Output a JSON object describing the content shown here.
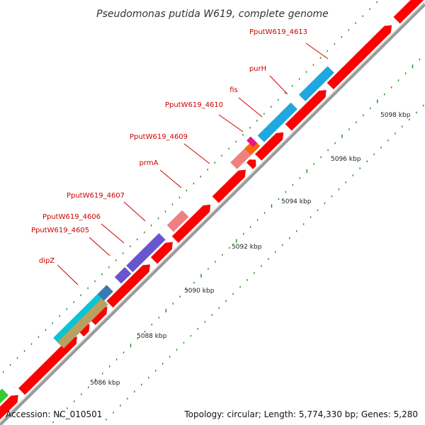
{
  "title": "Pseudomonas putida W619, complete genome",
  "accession_label": "Accession: NC_010501",
  "summary_label": "Topology: circular; Length: 5,774,330 bp; Genes: 5,280",
  "colors": {
    "cds": "#ff0000",
    "backbone": "#9a9a9a",
    "label": "#cc0000",
    "tick": "#1f8a1f"
  },
  "gene_labels": [
    {
      "name": "PputW619_4613"
    },
    {
      "name": "purH"
    },
    {
      "name": "fis"
    },
    {
      "name": "PputW619_4610"
    },
    {
      "name": "PputW619_4609"
    },
    {
      "name": "prmA"
    },
    {
      "name": "PputW619_4607"
    },
    {
      "name": "PputW619_4606"
    },
    {
      "name": "PputW619_4605"
    },
    {
      "name": "dipZ"
    }
  ],
  "ticks": [
    {
      "label": "5086 kbp"
    },
    {
      "label": "5088 kbp"
    },
    {
      "label": "5090 kbp"
    },
    {
      "label": "5092 kbp"
    },
    {
      "label": "5094 kbp"
    },
    {
      "label": "5096 kbp"
    },
    {
      "label": "5098 kbp"
    }
  ]
}
